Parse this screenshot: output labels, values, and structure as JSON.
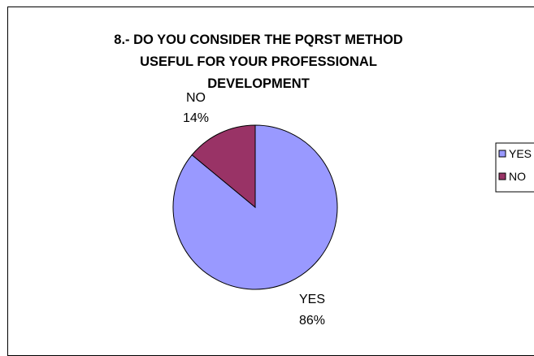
{
  "chart_data": {
    "type": "pie",
    "title_lines": [
      "8.- DO YOU CONSIDER THE PQRST METHOD",
      "USEFUL FOR YOUR PROFESSIONAL",
      "DEVELOPMENT"
    ],
    "categories": [
      "YES",
      "NO"
    ],
    "values": [
      86,
      14
    ],
    "data_labels": [
      {
        "name": "YES",
        "pct": "86%"
      },
      {
        "name": "NO",
        "pct": "14%"
      }
    ],
    "legend": {
      "placement": "right",
      "entries": [
        "YES",
        "NO"
      ]
    },
    "colors": [
      "#9999ff",
      "#993366"
    ]
  }
}
